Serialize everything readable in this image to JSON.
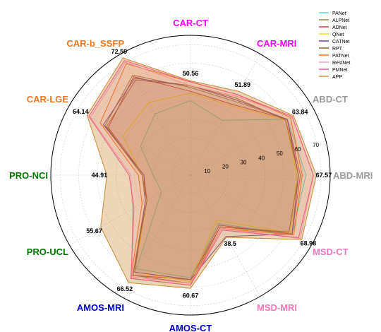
{
  "chart_data": {
    "type": "radar",
    "rmax": 75,
    "rticks": [
      10,
      20,
      30,
      40,
      50,
      60,
      70
    ],
    "grid": true,
    "legend_position": "top-right",
    "axes": [
      {
        "label": "CAR-CT",
        "color": "#ff00ff",
        "max_label": "50.56"
      },
      {
        "label": "CAR-MRI",
        "color": "#ff00ff",
        "max_label": "51.89"
      },
      {
        "label": "ABD-CT",
        "color": "#999999",
        "max_label": "63.84"
      },
      {
        "label": "ABD-MRI",
        "color": "#999999",
        "max_label": "67.57"
      },
      {
        "label": "MSD-CT",
        "color": "#ee77bb",
        "max_label": "68.98"
      },
      {
        "label": "MSD-MRI",
        "color": "#ee77bb",
        "max_label": "38.5"
      },
      {
        "label": "AMOS-CT",
        "color": "#0000cc",
        "max_label": "60.67"
      },
      {
        "label": "AMOS-MRI",
        "color": "#0000cc",
        "max_label": "66.52"
      },
      {
        "label": "PRO-UCL",
        "color": "#007700",
        "max_label": "55.67"
      },
      {
        "label": "PRO-NCI",
        "color": "#007700",
        "max_label": "44.91"
      },
      {
        "label": "CAR-LGE",
        "color": "#ee7722",
        "max_label": "64.14"
      },
      {
        "label": "CAR-b_SSFP",
        "color": "#ee7722",
        "max_label": "72.59"
      }
    ],
    "series": [
      {
        "name": "PANet",
        "color": "#40e0d0",
        "fill": false,
        "values": [
          40,
          34,
          60,
          62,
          63,
          30,
          55,
          58,
          18,
          20,
          31,
          38
        ]
      },
      {
        "name": "ALPNet",
        "color": "#8b7d3a",
        "fill": false,
        "values": [
          47,
          46,
          60,
          58,
          63,
          32,
          56,
          62,
          28,
          26,
          53,
          62
        ]
      },
      {
        "name": "ADNet",
        "color": "#cc3333",
        "fill": false,
        "values": [
          45,
          44,
          60,
          59,
          63,
          31,
          56,
          62,
          27,
          25,
          51,
          61
        ]
      },
      {
        "name": "QNet",
        "color": "#eedd00",
        "fill": false,
        "values": [
          44,
          43,
          59,
          57,
          62,
          28,
          57,
          60,
          27,
          26,
          42,
          45
        ]
      },
      {
        "name": "CATNet",
        "color": "#663399",
        "fill": false,
        "values": [
          48,
          47,
          60,
          58,
          63,
          38,
          56,
          60,
          28,
          25,
          54,
          60
        ]
      },
      {
        "name": "RPT",
        "color": "#885522",
        "fill": false,
        "values": [
          48,
          48,
          59,
          58,
          61,
          32,
          58,
          62,
          27,
          26,
          52,
          59
        ]
      },
      {
        "name": "PATNet",
        "color": "#ff6600",
        "fill": false,
        "values": [
          50,
          50,
          62,
          60,
          64,
          33,
          59,
          64,
          30,
          28,
          56,
          69
        ]
      },
      {
        "name": "RestNet",
        "color": "#ff99cc",
        "fill": false,
        "values": [
          48,
          49,
          63,
          66,
          68,
          33,
          58,
          63,
          36,
          32,
          62,
          70
        ]
      },
      {
        "name": "PMNet",
        "color": "#ff44aa",
        "fill": false,
        "values": [
          50,
          50,
          63,
          66,
          67,
          34,
          59,
          64,
          35,
          33,
          63,
          71
        ]
      },
      {
        "name": "APP",
        "color": "#cc8833",
        "fill": true,
        "values": [
          50.56,
          51.89,
          63.84,
          67.57,
          68.98,
          38.5,
          60.67,
          66.52,
          55.67,
          44.91,
          64.14,
          72.59
        ]
      }
    ]
  }
}
